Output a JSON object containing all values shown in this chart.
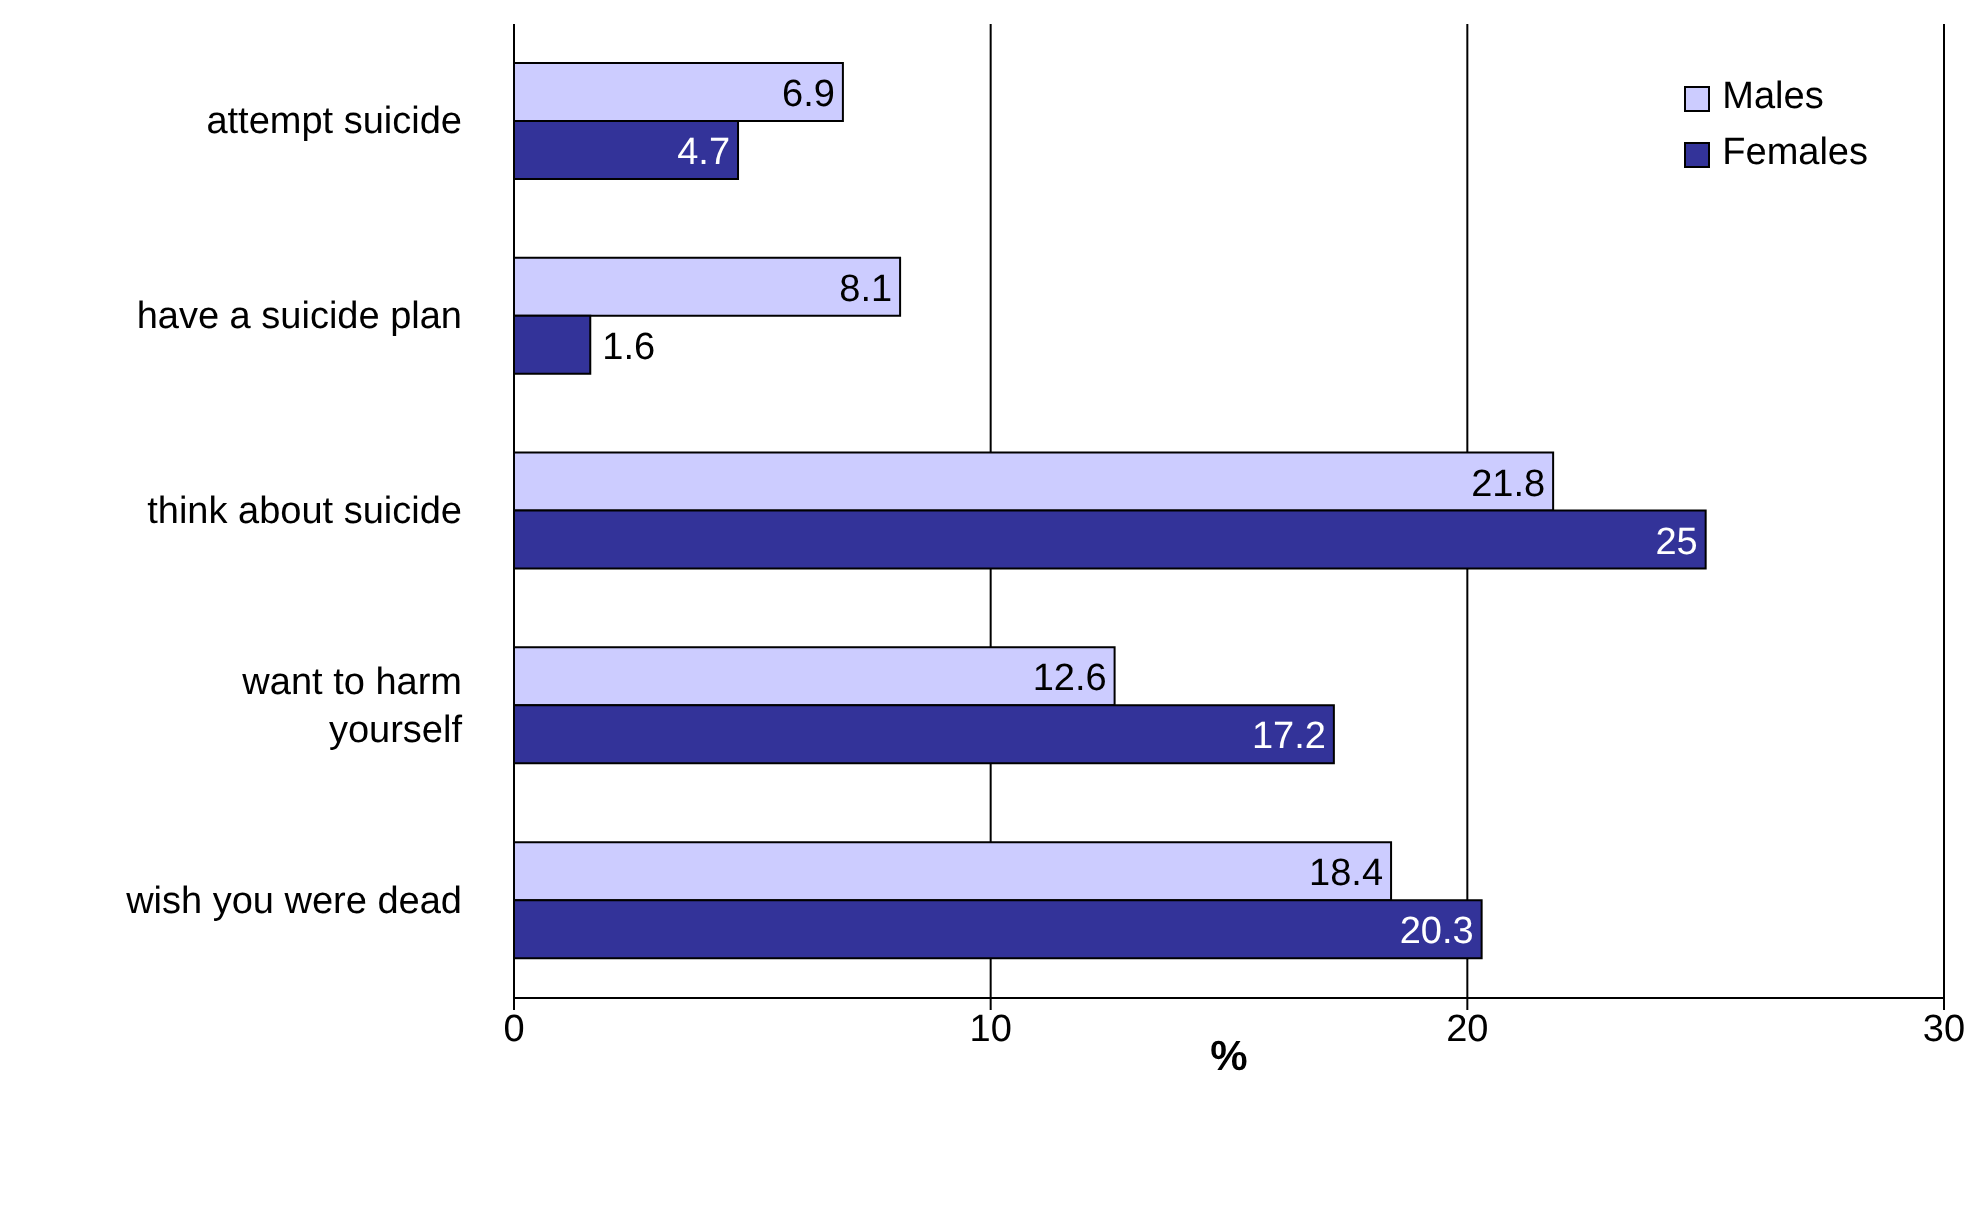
{
  "chart_data": {
    "type": "bar",
    "orientation": "horizontal",
    "xlabel": "%",
    "categories": [
      "attempt suicide",
      "have a suicide plan",
      "think about suicide",
      "want to harm yourself",
      "wish you were dead"
    ],
    "series": [
      {
        "name": "Males",
        "color": "#ccccff",
        "values": [
          6.9,
          8.1,
          21.8,
          12.6,
          18.4
        ]
      },
      {
        "name": "Females",
        "color": "#333399",
        "values": [
          4.7,
          1.6,
          25,
          17.2,
          20.3
        ]
      }
    ],
    "xlim": [
      0,
      30
    ],
    "xticks": [
      0,
      10,
      20,
      30
    ],
    "grid": "x",
    "legend": "top right",
    "data_labels": true
  }
}
